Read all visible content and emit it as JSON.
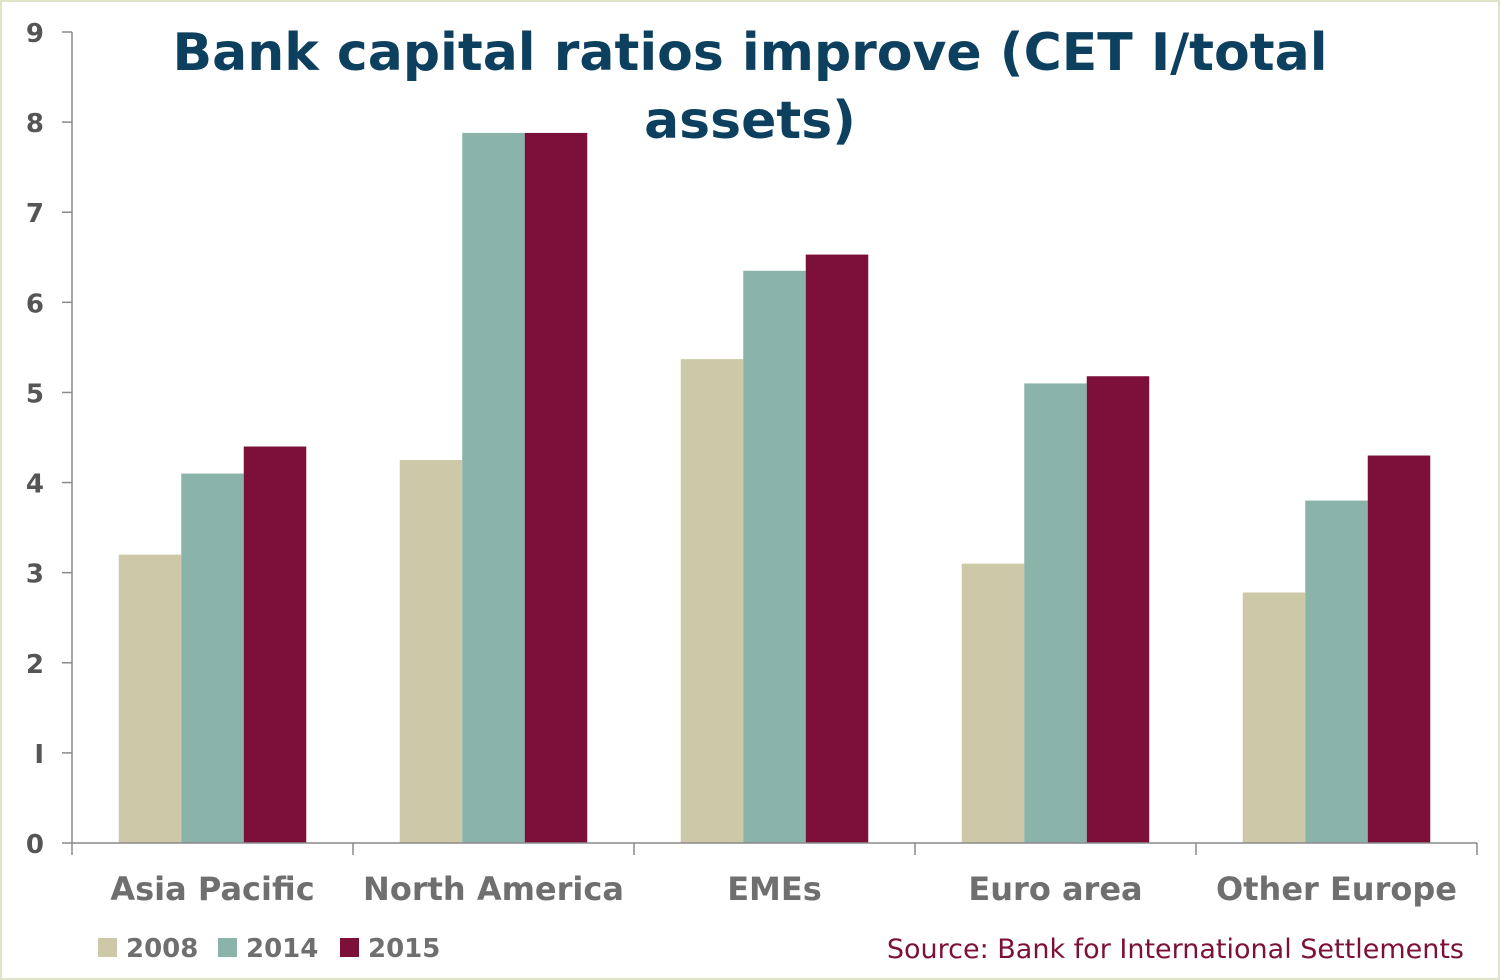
{
  "chart_data": {
    "type": "bar",
    "title_lines": [
      "Bank capital ratios improve (CET I/total",
      "assets)"
    ],
    "xlabel": "",
    "ylabel": "",
    "ylim": [
      0,
      9
    ],
    "yticks": [
      "0",
      "I",
      "2",
      "3",
      "4",
      "5",
      "6",
      "7",
      "8",
      "9"
    ],
    "categories": [
      "Asia Pacific",
      "North America",
      "EMEs",
      "Euro area",
      "Other Europe"
    ],
    "series": [
      {
        "name": "2008",
        "color": "#cdc8a8",
        "values": [
          3.2,
          4.25,
          5.37,
          3.1,
          2.78
        ]
      },
      {
        "name": "2014",
        "color": "#8ab4aa",
        "values": [
          4.1,
          7.88,
          6.35,
          5.1,
          3.8
        ]
      },
      {
        "name": "2015",
        "color": "#7d1039",
        "values": [
          4.4,
          7.88,
          6.53,
          5.18,
          4.3
        ]
      }
    ],
    "grid": false,
    "legend_position": "bottom-left",
    "source": "Source: Bank for International Settlements"
  }
}
